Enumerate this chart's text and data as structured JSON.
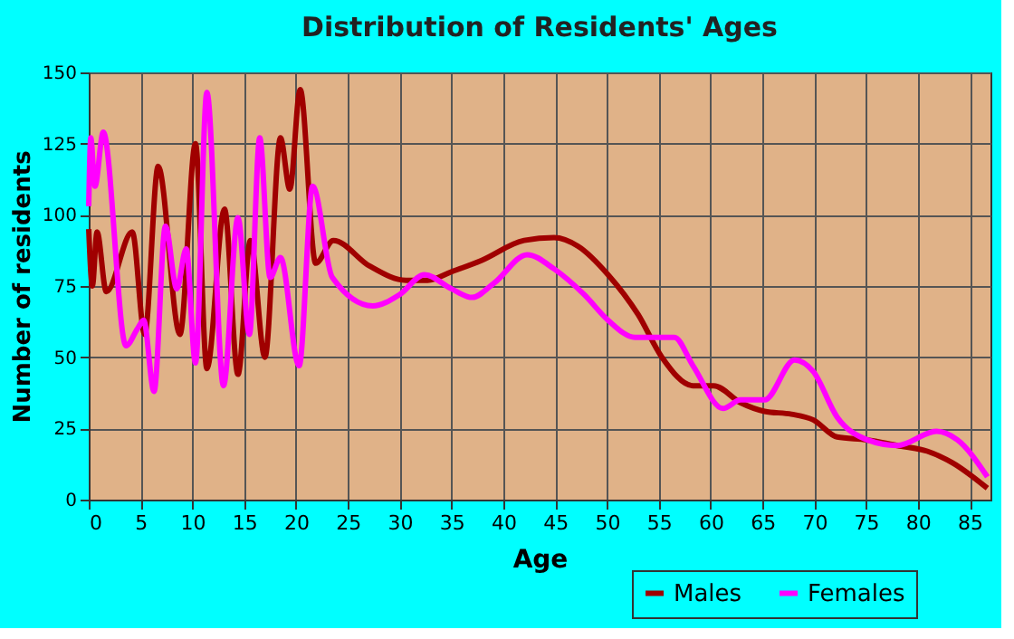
{
  "chart_data": {
    "type": "line",
    "title": "Distribution of Residents' Ages",
    "xlabel": "Age",
    "ylabel": "Number of residents",
    "xlim": [
      0,
      87
    ],
    "xticks": [
      0,
      5,
      10,
      15,
      20,
      25,
      30,
      35,
      40,
      45,
      50,
      55,
      60,
      65,
      70,
      75,
      80,
      85
    ],
    "ylim": [
      0,
      150
    ],
    "yticks": [
      0,
      25,
      50,
      75,
      100,
      125,
      150
    ],
    "grid": true,
    "legend": "bottom right",
    "marker": "none",
    "line_style": "solid",
    "series": [
      {
        "name": "Males",
        "color": "#a00000",
        "x": [
          0,
          0.35,
          0.8,
          1.7,
          4.2,
          5.4,
          6.7,
          8.8,
          10.3,
          11.4,
          13.1,
          14.4,
          15.6,
          17,
          18.5,
          19.4,
          20.4,
          21.9,
          23.6,
          27.1,
          30.6,
          32.7,
          35,
          37.9,
          42,
          44.9,
          47.2,
          50.1,
          53,
          55.3,
          58.3,
          60.3,
          62.9,
          65.2,
          67.8,
          69.9,
          72.2,
          75.1,
          78,
          80.9,
          83.3,
          86.7
        ],
        "values": [
          95,
          75,
          94,
          73,
          94,
          58,
          117,
          58,
          125,
          46,
          102,
          44,
          91,
          50,
          127,
          109,
          144,
          83,
          91,
          82,
          77,
          77,
          80,
          84,
          91,
          92,
          89,
          79,
          65,
          50,
          40,
          40,
          34,
          31,
          30,
          28,
          22,
          21,
          19,
          17,
          13,
          4
        ]
      },
      {
        "name": "Females",
        "color": "#ff00ff",
        "x": [
          0,
          0.2,
          0.6,
          1.4,
          3.6,
          4.7,
          5.3,
          6.3,
          7.4,
          8.5,
          9.4,
          10.3,
          11.4,
          13,
          14.4,
          15.5,
          16.5,
          17.5,
          18.5,
          20.3,
          21.6,
          23.5,
          27.4,
          30,
          32.4,
          35,
          37,
          39.1,
          42.3,
          44.9,
          47.8,
          50.1,
          52.7,
          56.5,
          58.3,
          61.2,
          62.9,
          65.2,
          68.1,
          69.9,
          72.2,
          75.1,
          78,
          81.8,
          83.8,
          86.7
        ],
        "values": [
          103,
          127,
          110,
          129,
          54,
          60,
          63,
          38,
          96,
          74,
          88,
          48,
          143,
          40,
          99,
          58,
          127,
          78,
          85,
          47,
          110,
          78,
          68,
          72,
          79,
          74,
          71,
          76,
          86,
          81,
          72,
          63,
          57,
          57,
          47,
          32,
          35,
          35,
          49,
          45,
          29,
          21,
          19,
          24,
          21,
          8
        ]
      }
    ]
  }
}
